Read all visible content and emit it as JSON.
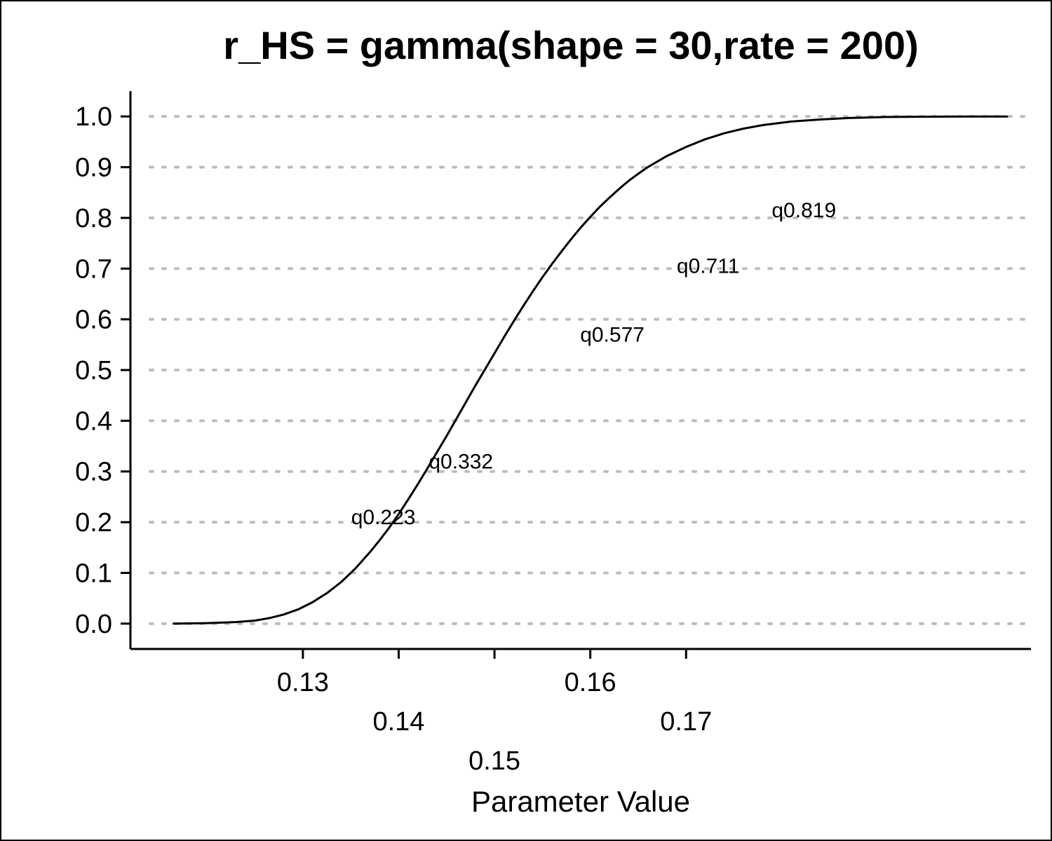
{
  "chart_data": {
    "type": "line",
    "title": "r_HS = gamma(shape = 30,rate = 200)",
    "xlabel": "Parameter Value",
    "ylabel": "",
    "xlim": [
      0.112,
      0.206
    ],
    "ylim": [
      -0.05,
      1.05
    ],
    "y_ticks": [
      "0.0",
      "0.1",
      "0.2",
      "0.3",
      "0.4",
      "0.5",
      "0.6",
      "0.7",
      "0.8",
      "0.9",
      "1.0"
    ],
    "x_ticks": [
      {
        "value": 0.13,
        "label": "0.13",
        "row": 0
      },
      {
        "value": 0.14,
        "label": "0.14",
        "row": 1
      },
      {
        "value": 0.15,
        "label": "0.15",
        "row": 2
      },
      {
        "value": 0.16,
        "label": "0.16",
        "row": 0
      },
      {
        "value": 0.17,
        "label": "0.17",
        "row": 1
      }
    ],
    "grid": "horizontal-dotted",
    "line_color": "#000000",
    "grid_color": "#bdbdbd",
    "series": [
      {
        "x": [
          0.1165,
          0.12,
          0.123,
          0.125,
          0.1265,
          0.128,
          0.1295,
          0.131,
          0.1325,
          0.134,
          0.1355,
          0.137,
          0.138,
          0.139,
          0.14,
          0.141,
          0.142,
          0.143,
          0.144,
          0.145,
          0.146,
          0.147,
          0.148,
          0.149,
          0.15,
          0.151,
          0.152,
          0.153,
          0.154,
          0.155,
          0.156,
          0.157,
          0.158,
          0.159,
          0.16,
          0.161,
          0.162,
          0.163,
          0.164,
          0.165,
          0.166,
          0.168,
          0.17,
          0.172,
          0.174,
          0.176,
          0.178,
          0.181,
          0.184,
          0.187,
          0.191,
          0.195,
          0.199,
          0.2035
        ],
        "y": [
          0.0,
          0.001,
          0.003,
          0.006,
          0.011,
          0.018,
          0.028,
          0.042,
          0.06,
          0.082,
          0.109,
          0.141,
          0.164,
          0.189,
          0.216,
          0.245,
          0.275,
          0.306,
          0.338,
          0.37,
          0.403,
          0.436,
          0.469,
          0.501,
          0.533,
          0.565,
          0.596,
          0.626,
          0.655,
          0.683,
          0.709,
          0.734,
          0.758,
          0.781,
          0.802,
          0.822,
          0.84,
          0.857,
          0.873,
          0.887,
          0.9,
          0.922,
          0.94,
          0.955,
          0.967,
          0.976,
          0.983,
          0.99,
          0.994,
          0.997,
          0.999,
          0.9995,
          0.9999,
          1.0
        ]
      }
    ],
    "annotations": [
      {
        "text": "q0.223",
        "x": 0.1384,
        "y": 0.21
      },
      {
        "text": "q0.332",
        "x": 0.1465,
        "y": 0.32
      },
      {
        "text": "q0.577",
        "x": 0.1623,
        "y": 0.57
      },
      {
        "text": "q0.711",
        "x": 0.1723,
        "y": 0.705
      },
      {
        "text": "q0.819",
        "x": 0.1823,
        "y": 0.815
      }
    ]
  }
}
